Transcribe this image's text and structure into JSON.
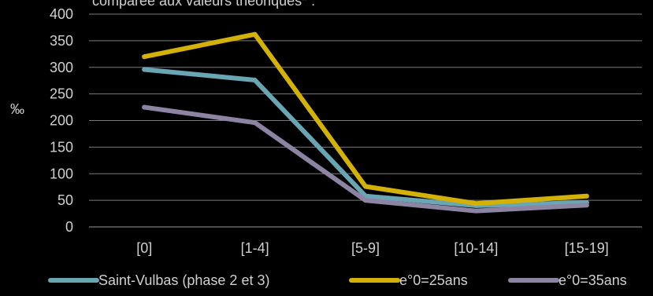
{
  "chart_data": {
    "type": "line",
    "title": "comparée aux valeurs théoriques* :",
    "xlabel": "",
    "ylabel": "‰",
    "categories": [
      "[0]",
      "[1-4]",
      "[5-9]",
      "[10-14]",
      "[15-19]"
    ],
    "ylim": [
      0,
      400
    ],
    "yticks": [
      "0",
      "50",
      "100",
      "150",
      "200",
      "250",
      "300",
      "350",
      "400"
    ],
    "grid": true,
    "legend_position": "bottom",
    "series": [
      {
        "name": "Saint-Vulbas (phase 2 et 3)",
        "color": "#6aa5b3",
        "values": [
          296,
          276,
          58,
          40,
          46
        ]
      },
      {
        "name": "e°0=25ans",
        "color": "#d4b106",
        "values": [
          320,
          362,
          76,
          44,
          58
        ]
      },
      {
        "name": "e°0=35ans",
        "color": "#8d84a3",
        "values": [
          225,
          196,
          50,
          30,
          41
        ]
      }
    ]
  }
}
